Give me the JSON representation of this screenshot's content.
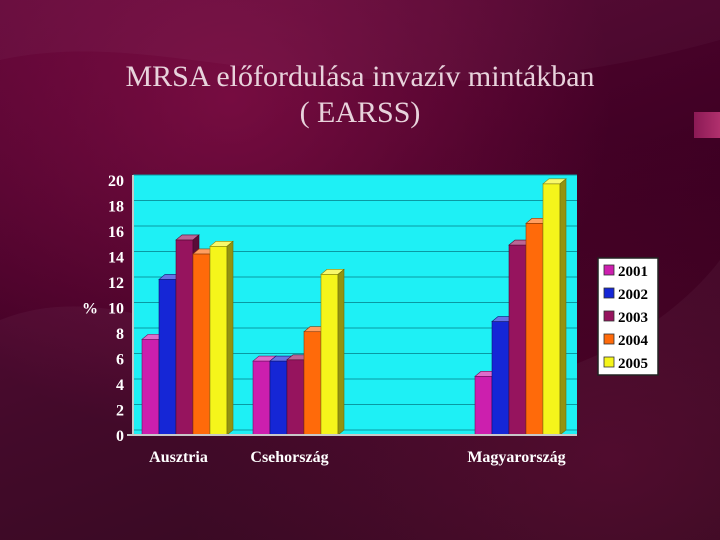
{
  "title_line1": "MRSA előfordulása invazív mintákban",
  "title_line2": "( EARSS)",
  "chart_data": {
    "type": "bar",
    "categories": [
      "Ausztria",
      "Csehország",
      "",
      "Magyarország"
    ],
    "ylabel": "%",
    "ylim": [
      0,
      20
    ],
    "yticks": [
      0,
      2,
      4,
      6,
      8,
      10,
      12,
      14,
      16,
      18,
      20
    ],
    "grid": true,
    "legend_position": "right",
    "series": [
      {
        "name": "2001",
        "color": "#cc1fae",
        "values": [
          7.5,
          5.8,
          null,
          4.6
        ]
      },
      {
        "name": "2002",
        "color": "#1526d6",
        "values": [
          12.2,
          5.8,
          null,
          8.9
        ]
      },
      {
        "name": "2003",
        "color": "#96145e",
        "values": [
          15.3,
          5.9,
          null,
          14.9
        ]
      },
      {
        "name": "2004",
        "color": "#ff6a0a",
        "values": [
          14.2,
          8.1,
          null,
          16.6
        ]
      },
      {
        "name": "2005",
        "color": "#f5f51b",
        "values": [
          14.8,
          12.6,
          null,
          19.7
        ]
      }
    ],
    "plot_bg": "#1ef0f5"
  }
}
